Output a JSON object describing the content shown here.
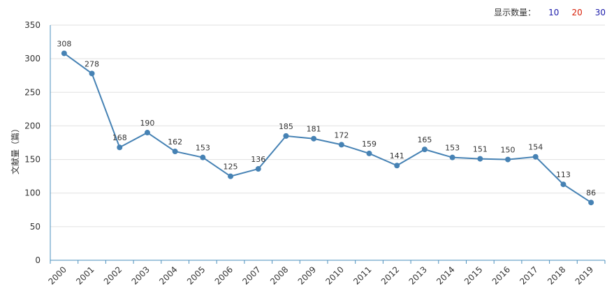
{
  "count_selector": {
    "label": "显示数量：",
    "options": [
      {
        "label": "10",
        "color": "#1a1aaa"
      },
      {
        "label": "20",
        "color": "#d81e06"
      },
      {
        "label": "30",
        "color": "#1a1aaa"
      }
    ]
  },
  "chart_data": {
    "type": "line",
    "title": "",
    "xlabel": "",
    "ylabel": "文献量（篇）",
    "ylim": [
      0,
      350
    ],
    "yticks": [
      0,
      50,
      100,
      150,
      200,
      250,
      300,
      350
    ],
    "grid": true,
    "categories": [
      "2000",
      "2001",
      "2002",
      "2003",
      "2004",
      "2005",
      "2006",
      "2007",
      "2008",
      "2009",
      "2010",
      "2011",
      "2012",
      "2013",
      "2014",
      "2015",
      "2016",
      "2017",
      "2018",
      "2019"
    ],
    "series": [
      {
        "values": [
          308,
          278,
          168,
          190,
          162,
          153,
          125,
          136,
          185,
          181,
          172,
          159,
          141,
          165,
          153,
          151,
          150,
          154,
          113,
          86
        ],
        "color": "#4682b4"
      }
    ]
  }
}
